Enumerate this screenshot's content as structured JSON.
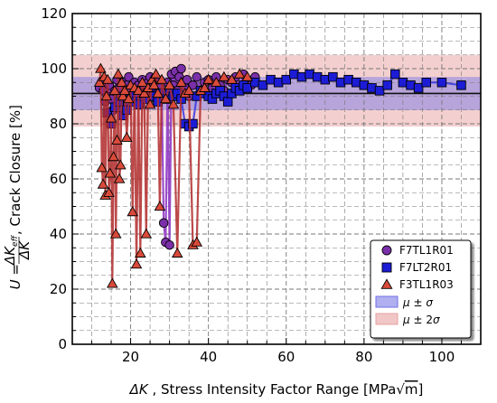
{
  "chart_data": {
    "type": "scatter",
    "xlabel_symbol": "ΔK",
    "xlabel_text": " , Stress Intensity Factor Range [MPa",
    "xlabel_unit_root": "m",
    "xlabel_close": "]",
    "ylabel_lhs": "U = ",
    "ylabel_frac_num": "ΔK",
    "ylabel_frac_num_sub": "eff",
    "ylabel_frac_den": "ΔK",
    "ylabel_text": " , Crack Closure [%]",
    "xlim": [
      5,
      110
    ],
    "ylim": [
      0,
      120
    ],
    "xticks": [
      20,
      40,
      60,
      80,
      100
    ],
    "yticks": [
      0,
      20,
      40,
      60,
      80,
      100,
      120
    ],
    "grid": true,
    "legend_position": "bottom-right",
    "bands": [
      {
        "name": "μ ± σ",
        "label_parts": [
          "μ",
          " ± ",
          "σ"
        ],
        "low": 85,
        "high": 97,
        "color": "#6f6fe6",
        "opacity": 0.45
      },
      {
        "name": "μ ± 2σ",
        "label_parts": [
          "μ",
          " ± 2",
          "σ"
        ],
        "low": 79,
        "high": 105,
        "color": "#e8a0a0",
        "opacity": 0.5
      }
    ],
    "mean_line": 91,
    "series": [
      {
        "name": "F7TL1R01",
        "marker": "circle",
        "fill": "#7b2fa8",
        "line": "#8a2fbf",
        "x": [
          12,
          12.5,
          13,
          13.5,
          14,
          14.5,
          15,
          15.5,
          16,
          16.5,
          17,
          17.5,
          18,
          18.5,
          19,
          19.5,
          20,
          20.5,
          21,
          21.5,
          22,
          22.5,
          23,
          23.5,
          24,
          24.5,
          25,
          25.5,
          26,
          26.5,
          27,
          27.5,
          28,
          28.5,
          29,
          29.5,
          30,
          30.5,
          31,
          31.5,
          32,
          32.5,
          33,
          33.5,
          34,
          34.5,
          35,
          36,
          37,
          38,
          39,
          40,
          41,
          42,
          43,
          44,
          45,
          46,
          47,
          48,
          49,
          50,
          51,
          52
        ],
        "y": [
          93,
          95,
          92,
          88,
          90,
          94,
          89,
          85,
          92,
          96,
          93,
          90,
          95,
          88,
          94,
          97,
          92,
          89,
          95,
          91,
          94,
          87,
          96,
          93,
          90,
          95,
          97,
          92,
          94,
          89,
          96,
          93,
          91,
          44,
          37,
          95,
          36,
          98,
          94,
          99,
          92,
          97,
          100,
          95,
          93,
          96,
          90,
          94,
          97,
          92,
          95,
          96,
          93,
          97,
          94,
          92,
          96,
          95,
          97,
          93,
          98,
          96,
          94,
          97
        ]
      },
      {
        "name": "F7LT2R01",
        "marker": "square",
        "fill": "#1c1cd6",
        "line": "#3a3ae0",
        "x": [
          14,
          15,
          16,
          17,
          18,
          19,
          20,
          21,
          22,
          23,
          24,
          25,
          26,
          27,
          28,
          29,
          30,
          31,
          32,
          33,
          34,
          35,
          36,
          37,
          38,
          39,
          40,
          41,
          42,
          43,
          44,
          45,
          46,
          47,
          48,
          49,
          50,
          52,
          54,
          56,
          58,
          60,
          62,
          64,
          66,
          68,
          70,
          72,
          74,
          76,
          78,
          80,
          82,
          84,
          86,
          88,
          90,
          92,
          94,
          96,
          100,
          105
        ],
        "y": [
          84,
          80,
          86,
          88,
          83,
          85,
          90,
          88,
          87,
          91,
          89,
          92,
          90,
          88,
          91,
          89,
          92,
          90,
          91,
          89,
          80,
          79,
          80,
          90,
          92,
          91,
          90,
          89,
          91,
          92,
          90,
          88,
          91,
          93,
          92,
          94,
          93,
          95,
          94,
          96,
          95,
          96,
          98,
          97,
          98,
          97,
          96,
          97,
          95,
          96,
          95,
          94,
          93,
          92,
          94,
          98,
          95,
          94,
          93,
          95,
          95,
          94
        ]
      },
      {
        "name": "F3TL1R03",
        "marker": "triangle",
        "fill": "#d94a3a",
        "line": "#b02a2a",
        "x": [
          12,
          12.3,
          12.6,
          12.9,
          13.2,
          13.5,
          13.8,
          14.1,
          14.4,
          14.7,
          15,
          15.3,
          15.6,
          15.9,
          16.2,
          16.5,
          16.8,
          17.1,
          17.4,
          17.7,
          18,
          18.5,
          19,
          19.5,
          20,
          20.5,
          21,
          21.5,
          22,
          22.5,
          23,
          23.5,
          24,
          24.5,
          25,
          25.5,
          26,
          26.5,
          27,
          27.5,
          28,
          29,
          30,
          31,
          32,
          33,
          34,
          35,
          36,
          37,
          38,
          39,
          40,
          42,
          44,
          46,
          48,
          50
        ],
        "y": [
          95,
          100,
          64,
          58,
          97,
          54,
          90,
          96,
          55,
          62,
          82,
          22,
          68,
          92,
          40,
          74,
          98,
          60,
          65,
          95,
          90,
          92,
          75,
          89,
          94,
          48,
          93,
          29,
          92,
          33,
          95,
          91,
          40,
          93,
          87,
          96,
          94,
          98,
          91,
          50,
          96,
          89,
          94,
          87,
          33,
          95,
          91,
          92,
          36,
          37,
          92,
          93,
          96,
          95,
          97,
          96,
          98,
          97
        ]
      }
    ]
  }
}
